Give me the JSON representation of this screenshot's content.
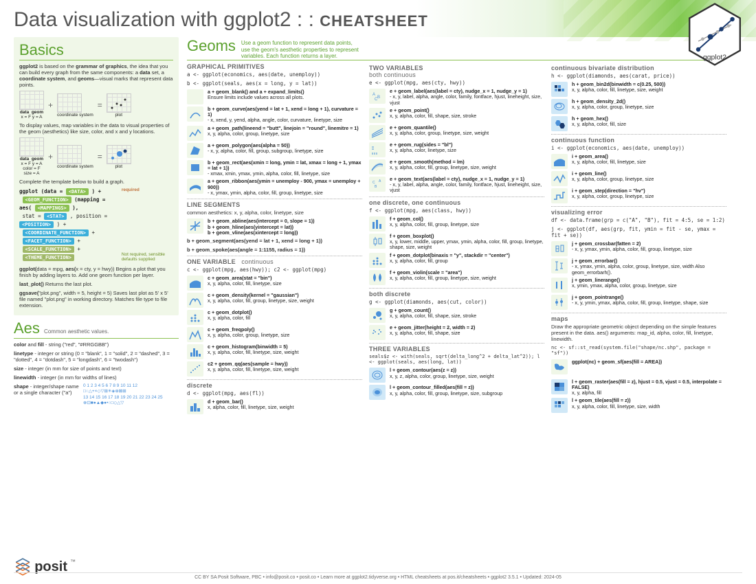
{
  "header": {
    "title_main": "Data visualization with ggplot2",
    "title_sep": ": :",
    "title_tag": "CHEATSHEET",
    "logo_label": "ggplot2"
  },
  "basics": {
    "heading": "Basics",
    "intro": "ggplot2 is based on the grammar of graphics, the idea that you can build every graph from the same components: a data set, a coordinate system, and geoms—visual marks that represent data points.",
    "diagram1": {
      "data": "data",
      "sub1": "x = F   y = A",
      "geom": "geom",
      "coord": "coordinate system",
      "plot": "plot"
    },
    "p2": "To display values, map variables in the data to visual properties of the geom (aesthetics) like size, color, and x and y locations.",
    "diagram2": {
      "sub1": "x = F  y = A\ncolor = F\nsize = A"
    },
    "template_intro": "Complete the template below to build a graph.",
    "template_line1": "ggplot (data = <DATA> ) +",
    "pill_geom": "<GEOM_FUNCTION>",
    "pill_map": "(mapping = aes( <MAPPINGS> ),",
    "stat_line": " stat = <STAT> , position = <POSITION> ) +",
    "pill_coord": "<COORDINATE_FUNCTION>",
    "pill_facet": "<FACET_FUNCTION>",
    "pill_scale": "<SCALE_FUNCTION>",
    "pill_theme": "<THEME_FUNCTION>",
    "req": "required",
    "opt": "Not required, sensible defaults supplied",
    "p3": "ggplot(data = mpg, aes(x = cty, y = hwy)) Begins a plot that you finish by adding layers to. Add one geom function per layer.",
    "p4": "last_plot() Returns the last plot.",
    "p5": "ggsave(\"plot.png\", width = 5, height = 5) Saves last plot as 5' x 5' file named \"plot.png\" in working directory. Matches file type to file extension."
  },
  "aes": {
    "heading": "Aes",
    "sub": "Common aesthetic values.",
    "color": "color and fill - string (\"red\", \"#RRGGBB\")",
    "linetype": "linetype - integer or string (0 = \"blank\", 1 = \"solid\", 2 = \"dashed\", 3 = \"dotted\", 4 = \"dotdash\", 5 = \"longdash\", 6 = \"twodash\")",
    "size": "size - integer (in mm for size of points and text)",
    "linewidth": "linewidth - integer (in mm for widths of lines)",
    "shape": "shape - integer/shape name or a single character (\"a\")",
    "shape_codes": "0  1  2  3  4  5  6  7  8  9 10 11 12\n□○△+×◇▽⊞✳◈⊕⊠⊞\n13 14 15 16 17 18 19 20 21 22 23 24 25\n⊗⊡■●▲◆●•○□◇△▽"
  },
  "geoms": {
    "heading": "Geoms",
    "tagline": "Use a geom function to represent data points, use the geom's aesthetic properties to represent variables. Each function returns a layer.",
    "col1": {
      "h1": "GRAPHICAL PRIMITIVES",
      "setup1": "a <- ggplot(economics, aes(date, unemploy))",
      "setup2": "b <- ggplot(seals, aes(x = long, y = lat))",
      "items1": [
        {
          "t": "a + geom_blank() and a + expand_limits()",
          "d": "Ensure limits include values across all plots."
        },
        {
          "t": "b + geom_curve(aes(yend = lat + 1, xend = long + 1), curvature = 1)",
          "d": " - x, xend, y, yend, alpha, angle, color, curvature, linetype, size"
        },
        {
          "t": "a + geom_path(lineend = \"butt\", linejoin = \"round\", linemitre = 1)",
          "d": "x, y, alpha, color, group, linetype, size"
        },
        {
          "t": "a + geom_polygon(aes(alpha = 50))",
          "d": " - x, y, alpha, color, fill, group, subgroup, linetype, size"
        },
        {
          "t": "b + geom_rect(aes(xmin = long, ymin = lat, xmax = long + 1, ymax = lat + 1))",
          "d": " - xmax, xmin, ymax, ymin, alpha, color, fill, linetype, size"
        },
        {
          "t": "a + geom_ribbon(aes(ymin = unemploy - 900, ymax = unemploy + 900))",
          "d": " - x, ymax, ymin, alpha, color, fill, group, linetype, size"
        }
      ],
      "h2": "LINE SEGMENTS",
      "ls_setup": "common aesthetics: x, y, alpha, color, linetype, size",
      "items2": [
        {
          "t": "b + geom_abline(aes(intercept = 0, slope = 1))",
          "d": ""
        },
        {
          "t": "b + geom_hline(aes(yintercept = lat))",
          "d": ""
        },
        {
          "t": "b + geom_vline(aes(xintercept = long))",
          "d": ""
        }
      ],
      "ls_extra1": "b + geom_segment(aes(yend = lat + 1, xend = long + 1))",
      "ls_extra2": "b + geom_spoke(aes(angle = 1:1155, radius = 1))",
      "h3": "ONE VARIABLE",
      "h3sub": "continuous",
      "ov_setup": "c <- ggplot(mpg, aes(hwy)); c2 <- ggplot(mpg)",
      "items3": [
        {
          "t": "c + geom_area(stat = \"bin\")",
          "d": "x, y, alpha, color, fill, linetype, size"
        },
        {
          "t": "c + geom_density(kernel = \"gaussian\")",
          "d": "x, y, alpha, color, fill, group, linetype, size, weight"
        },
        {
          "t": "c + geom_dotplot()",
          "d": "x, y, alpha, color, fill"
        },
        {
          "t": "c + geom_freqpoly()",
          "d": "x, y, alpha, color, group, linetype, size"
        },
        {
          "t": "c + geom_histogram(binwidth = 5)",
          "d": "x, y, alpha, color, fill, linetype, size, weight"
        },
        {
          "t": "c2 + geom_qq(aes(sample = hwy))",
          "d": "x, y, alpha, color, fill, linetype, size, weight"
        }
      ],
      "h4": "discrete",
      "d_setup": "d <- ggplot(mpg, aes(fl))",
      "items4": [
        {
          "t": "d + geom_bar()",
          "d": "x, alpha, color, fill, linetype, size, weight"
        }
      ]
    },
    "col2": {
      "h1": "TWO VARIABLES",
      "h1b": "both continuous",
      "setup": "e <- ggplot(mpg, aes(cty, hwy))",
      "items1": [
        {
          "t": "e + geom_label(aes(label = cty), nudge_x = 1, nudge_y = 1)",
          "d": " - x, y, label, alpha, angle, color, family, fontface, hjust, lineheight, size, vjust"
        },
        {
          "t": "e + geom_point()",
          "d": "x, y, alpha, color, fill, shape, size, stroke"
        },
        {
          "t": "e + geom_quantile()",
          "d": "x, y, alpha, color, group, linetype, size, weight"
        },
        {
          "t": "e + geom_rug(sides = \"bl\")",
          "d": "x, y, alpha, color, linetype, size"
        },
        {
          "t": "e + geom_smooth(method = lm)",
          "d": "x, y, alpha, color, fill, group, linetype, size, weight"
        },
        {
          "t": "e + geom_text(aes(label = cty), nudge_x = 1, nudge_y = 1)",
          "d": " - x, y, label, alpha, angle, color, family, fontface, hjust, lineheight, size, vjust"
        }
      ],
      "h2": "one discrete, one continuous",
      "setup2": "f <- ggplot(mpg, aes(class, hwy))",
      "items2": [
        {
          "t": "f + geom_col()",
          "d": "x, y, alpha, color, fill, group, linetype, size"
        },
        {
          "t": "f + geom_boxplot()",
          "d": "x, y, lower, middle, upper, ymax, ymin, alpha, color, fill, group, linetype, shape, size, weight"
        },
        {
          "t": "f + geom_dotplot(binaxis = \"y\", stackdir = \"center\")",
          "d": "x, y, alpha, color, fill, group"
        },
        {
          "t": "f + geom_violin(scale = \"area\")",
          "d": "x, y, alpha, color, fill, group, linetype, size, weight"
        }
      ],
      "h3": "both discrete",
      "setup3": "g <- ggplot(diamonds, aes(cut, color))",
      "items3": [
        {
          "t": "g + geom_count()",
          "d": "x, y, alpha, color, fill, shape, size, stroke"
        },
        {
          "t": "e + geom_jitter(height = 2, width = 2)",
          "d": "x, y, alpha, color, fill, shape, size"
        }
      ],
      "h4": "THREE VARIABLES",
      "setup4": "seals$z <- with(seals, sqrt(delta_long^2 + delta_lat^2)); l <- ggplot(seals, aes(long, lat))",
      "items4": [
        {
          "t": "l + geom_contour(aes(z = z))",
          "d": "x, y, z, alpha, color, group, linetype, size, weight"
        },
        {
          "t": "l + geom_contour_filled(aes(fill = z))",
          "d": "x, y, alpha, color, fill, group, linetype, size, subgroup"
        }
      ]
    },
    "col3": {
      "h1": "continuous bivariate distribution",
      "setup1": "h <- ggplot(diamonds, aes(carat, price))",
      "items1": [
        {
          "t": "h + geom_bin2d(binwidth = c(0.25, 500))",
          "d": "x, y, alpha, color, fill, linetype, size, weight"
        },
        {
          "t": "h + geom_density_2d()",
          "d": "x, y, alpha, color, group, linetype, size"
        },
        {
          "t": "h + geom_hex()",
          "d": "x, y, alpha, color, fill, size"
        }
      ],
      "h2": "continuous function",
      "setup2": "i <- ggplot(economics, aes(date, unemploy))",
      "items2": [
        {
          "t": "i + geom_area()",
          "d": "x, y, alpha, color, fill, linetype, size"
        },
        {
          "t": "i + geom_line()",
          "d": "x, y, alpha, color, group, linetype, size"
        },
        {
          "t": "i + geom_step(direction = \"hv\")",
          "d": "x, y, alpha, color, group, linetype, size"
        }
      ],
      "h3": "visualizing error",
      "setup3a": "df <- data.frame(grp = c(\"A\", \"B\"), fit = 4:5, se = 1:2)",
      "setup3b": "j <- ggplot(df, aes(grp, fit, ymin = fit - se, ymax = fit + se))",
      "items3": [
        {
          "t": "j + geom_crossbar(fatten = 2)",
          "d": " - x, y, ymax, ymin, alpha, color, fill, group, linetype, size"
        },
        {
          "t": "j + geom_errorbar()",
          "d": " - x, ymax, ymin, alpha, color, group, linetype, size, width Also geom_errorbarh()."
        },
        {
          "t": "j + geom_linerange()",
          "d": "x, ymin, ymax, alpha, color, group, linetype, size"
        },
        {
          "t": "j + geom_pointrange()",
          "d": " - x, y, ymin, ymax, alpha, color, fill, group, linetype, shape, size"
        }
      ],
      "h4": "maps",
      "maps_p": "Draw the appropriate geometric object depending on the simple features present in the data. aes() arguments: map_id, alpha, color, fill, linetype, linewidth.",
      "setup4": "nc <- sf::st_read(system.file(\"shape/nc.shp\", package = \"sf\"))",
      "items4": [
        {
          "t": "ggplot(nc) +\n geom_sf(aes(fill = AREA))",
          "d": ""
        }
      ],
      "items5": [
        {
          "t": "l + geom_raster(aes(fill = z), hjust = 0.5, vjust = 0.5, interpolate = FALSE)",
          "d": "x, y, alpha, fill"
        },
        {
          "t": "l + geom_tile(aes(fill = z))",
          "d": "x, y, alpha, color, fill, linetype, size, width"
        }
      ]
    }
  },
  "footer": {
    "text": "CC BY SA Posit Software, PBC • info@posit.co • posit.co • Learn more at ggplot2.tidyverse.org • HTML cheatsheets at pos.it/cheatsheets • ggplot2  3.5.1 • Updated: 2024-05",
    "posit": "posit"
  },
  "colors": {
    "accent_green": "#5aa02c",
    "pill_green": "#8cc152",
    "bg_green": "#f0f7e8",
    "icon_blue": "#4a90d9"
  }
}
